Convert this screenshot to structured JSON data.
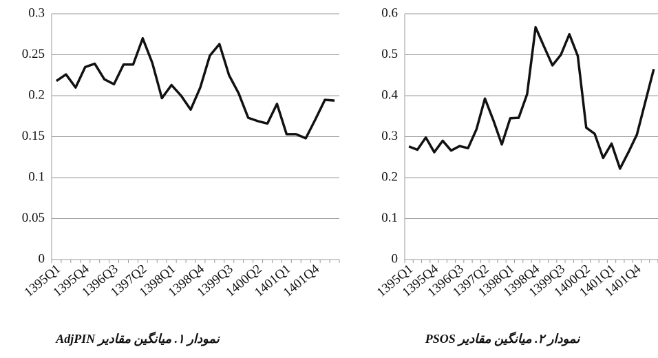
{
  "chart_data": [
    {
      "type": "line",
      "title": "نمودار ۱. میانگین مقادیر AdjPIN",
      "categories": [
        "1395Q1",
        null,
        null,
        "1395Q4",
        null,
        null,
        "1396Q3",
        null,
        null,
        "1397Q2",
        null,
        null,
        "1398Q1",
        null,
        null,
        "1398Q4",
        null,
        null,
        "1399Q3",
        null,
        null,
        "1400Q2",
        null,
        null,
        "1401Q1",
        null,
        null,
        "1401Q4",
        null,
        null
      ],
      "values": [
        0.218,
        0.226,
        0.21,
        0.235,
        0.239,
        0.22,
        0.214,
        0.238,
        0.238,
        0.27,
        0.24,
        0.197,
        0.213,
        0.2,
        0.183,
        0.21,
        0.249,
        0.263,
        0.225,
        0.203,
        0.173,
        0.169,
        0.166,
        0.19,
        0.153,
        0.153,
        0.148,
        0.171,
        0.195,
        0.194
      ],
      "color": "#111111",
      "ylim": [
        0,
        0.3
      ],
      "yticks": [
        0,
        0.05,
        0.1,
        0.15,
        0.2,
        0.25,
        0.3
      ],
      "grid": true
    },
    {
      "type": "line",
      "title": "نمودار ۲. میانگین مقادیر PSOS",
      "categories": [
        "1395Q1",
        null,
        null,
        "1395Q4",
        null,
        null,
        "1396Q3",
        null,
        null,
        "1397Q2",
        null,
        null,
        "1398Q1",
        null,
        null,
        "1398Q4",
        null,
        null,
        "1399Q3",
        null,
        null,
        "1400Q2",
        null,
        null,
        "1401Q1",
        null,
        null,
        "1401Q4",
        null,
        null
      ],
      "values": [
        0.276,
        0.268,
        0.298,
        0.262,
        0.29,
        0.266,
        0.277,
        0.272,
        0.318,
        0.393,
        0.34,
        0.281,
        0.345,
        0.346,
        0.404,
        0.567,
        0.52,
        0.474,
        0.5,
        0.55,
        0.497,
        0.322,
        0.307,
        0.248,
        0.283,
        0.222,
        0.262,
        0.305,
        0.385,
        0.465
      ],
      "color": "#111111",
      "ylim": [
        0,
        0.6
      ],
      "yticks": [
        0,
        0.1,
        0.2,
        0.3,
        0.4,
        0.5,
        0.6
      ],
      "grid": true
    }
  ]
}
